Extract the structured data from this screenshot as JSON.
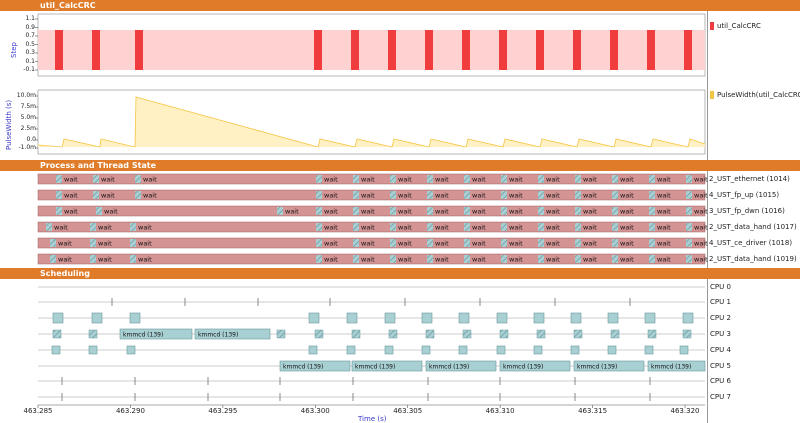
{
  "panels": {
    "crc_title": "util_CalcCRC",
    "process_title": "Process and Thread State",
    "sched_title": "Scheduling"
  },
  "step_chart": {
    "y_axis_name": "Step",
    "ticks": [
      "1.1",
      "0.9",
      "0.7",
      "0.5",
      "0.3",
      "0.1",
      "-0.1"
    ],
    "legend": "util_CalcCRC",
    "color": "#f03c3c",
    "fill": "#ffd2d2"
  },
  "pulse_chart": {
    "y_axis_name": "PulseWidth (s)",
    "ticks": [
      "10.0m",
      "7.5m",
      "5.0m",
      "2.5m",
      "0.0",
      "-1.0m"
    ],
    "legend": "PulseWidth(util_CalcCRC)",
    "color": "#f5c542",
    "fill": "#fff1c4"
  },
  "threads": [
    {
      "label": "2_UST_ethernet (1014)"
    },
    {
      "label": "4_UST_fp_up (1015)"
    },
    {
      "label": "3_UST_fp_dwn (1016)"
    },
    {
      "label": "2_UST_data_hand (1017)"
    },
    {
      "label": "4_UST_ce_driver (1018)"
    },
    {
      "label": "2_UST_data_hand (1019)"
    }
  ],
  "thread_wait_label": "wait",
  "cpus": [
    "CPU 0",
    "CPU 1",
    "CPU 2",
    "CPU 3",
    "CPU 4",
    "CPU 5",
    "CPU 6",
    "CPU 7"
  ],
  "sched_block_label": "kmmcd (139)",
  "x_axis": {
    "ticks": [
      "463.285",
      "463.290",
      "463.295",
      "463.300",
      "463.305",
      "463.310",
      "463.315",
      "463.320"
    ],
    "name": "Time (s)"
  }
}
